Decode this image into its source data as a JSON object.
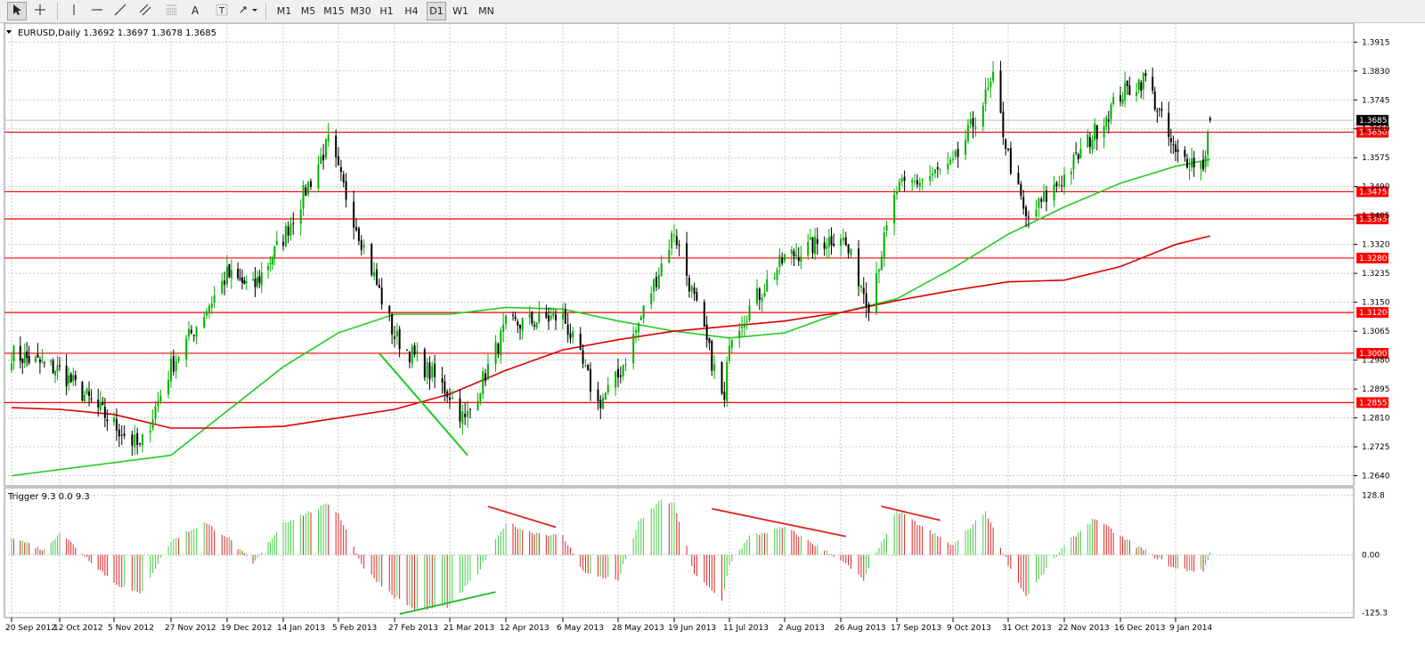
{
  "toolbar": {
    "tools": [
      {
        "name": "cursor-tool-button",
        "icon": "cursor-icon"
      },
      {
        "name": "crosshair-tool-button",
        "icon": "crosshair-icon"
      },
      {
        "name": "vertical-line-button",
        "icon": "vertical-line-icon"
      },
      {
        "name": "horizontal-line-button",
        "icon": "horizontal-line-icon"
      },
      {
        "name": "trendline-button",
        "icon": "trendline-icon"
      },
      {
        "name": "equidistant-channel-button",
        "icon": "channel-icon"
      },
      {
        "name": "fibonacci-button",
        "icon": "fibonacci-icon"
      },
      {
        "name": "text-button",
        "icon": "text-icon",
        "label": "A"
      },
      {
        "name": "text-label-button",
        "icon": "text-label-icon",
        "label": "T"
      },
      {
        "name": "arrows-button",
        "icon": "arrows-dropdown-icon"
      }
    ],
    "timeframes": [
      "M1",
      "M5",
      "M15",
      "M30",
      "H1",
      "H4",
      "D1",
      "W1",
      "MN"
    ],
    "active_timeframe": "D1"
  },
  "main_panel": {
    "title": "EURUSD,Daily  1.3692 1.3697 1.3678 1.3685",
    "current_price_label": "1.3685"
  },
  "indicator_panel": {
    "title": "Trigger 9.3 0.0 9.3"
  },
  "colors": {
    "bull_candle": "#00b000",
    "bear_candle": "#000000",
    "level_line": "#ff0000",
    "ma_green": "#22cc22",
    "ma_red": "#dd0000",
    "hist_up": "#44cc44",
    "hist_down": "#dd2222",
    "background": "#ffffff",
    "grid": "#c8c8c8"
  },
  "chart_data": [
    {
      "type": "candlestick",
      "symbol": "EURUSD",
      "timeframe": "Daily",
      "ylim": [
        1.261,
        1.3955
      ],
      "y_ticks": [
        "1.3915",
        "1.3830",
        "1.3745",
        "1.3660",
        "1.3575",
        "1.3490",
        "1.3405",
        "1.3320",
        "1.3235",
        "1.3150",
        "1.3065",
        "1.2980",
        "1.2895",
        "1.2810",
        "1.2725",
        "1.2640"
      ],
      "x_ticks": [
        "20 Sep 2012",
        "12 Oct 2012",
        "5 Nov 2012",
        "27 Nov 2012",
        "19 Dec 2012",
        "14 Jan 2013",
        "5 Feb 2013",
        "27 Feb 2013",
        "21 Mar 2013",
        "12 Apr 2013",
        "6 May 2013",
        "28 May 2013",
        "19 Jun 2013",
        "11 Jul 2013",
        "2 Aug 2013",
        "26 Aug 2013",
        "17 Sep 2013",
        "9 Oct 2013",
        "31 Oct 2013",
        "22 Nov 2013",
        "16 Dec 2013",
        "9 Jan 2014"
      ],
      "levels": [
        {
          "value": 1.365,
          "label": "1.3650"
        },
        {
          "value": 1.3475,
          "label": "1.3475"
        },
        {
          "value": 1.3395,
          "label": "1.3395"
        },
        {
          "value": 1.328,
          "label": "1.3280"
        },
        {
          "value": 1.312,
          "label": "1.3120"
        },
        {
          "value": 1.3,
          "label": "1.3000"
        },
        {
          "value": 1.2855,
          "label": "1.2855"
        }
      ],
      "close_anchors": [
        {
          "date": "20 Sep 2012",
          "close": 1.3
        },
        {
          "date": "12 Oct 2012",
          "close": 1.295
        },
        {
          "date": "5 Nov 2012",
          "close": 1.279
        },
        {
          "date": "15 Nov 2012",
          "close": 1.272
        },
        {
          "date": "27 Nov 2012",
          "close": 1.296
        },
        {
          "date": "19 Dec 2012",
          "close": 1.323
        },
        {
          "date": "31 Dec 2012",
          "close": 1.319
        },
        {
          "date": "14 Jan 2013",
          "close": 1.334
        },
        {
          "date": "1 Feb 2013",
          "close": 1.362
        },
        {
          "date": "5 Feb 2013",
          "close": 1.353
        },
        {
          "date": "27 Feb 2013",
          "close": 1.305
        },
        {
          "date": "21 Mar 2013",
          "close": 1.288
        },
        {
          "date": "27 Mar 2013",
          "close": 1.28
        },
        {
          "date": "12 Apr 2013",
          "close": 1.308
        },
        {
          "date": "6 May 2013",
          "close": 1.311
        },
        {
          "date": "20 May 2013",
          "close": 1.285
        },
        {
          "date": "28 May 2013",
          "close": 1.293
        },
        {
          "date": "19 Jun 2013",
          "close": 1.336
        },
        {
          "date": "9 Jul 2013",
          "close": 1.285
        },
        {
          "date": "11 Jul 2013",
          "close": 1.305
        },
        {
          "date": "2 Aug 2013",
          "close": 1.328
        },
        {
          "date": "26 Aug 2013",
          "close": 1.335
        },
        {
          "date": "6 Sep 2013",
          "close": 1.315
        },
        {
          "date": "17 Sep 2013",
          "close": 1.348
        },
        {
          "date": "9 Oct 2013",
          "close": 1.355
        },
        {
          "date": "25 Oct 2013",
          "close": 1.38
        },
        {
          "date": "31 Oct 2013",
          "close": 1.358
        },
        {
          "date": "7 Nov 2013",
          "close": 1.339
        },
        {
          "date": "22 Nov 2013",
          "close": 1.352
        },
        {
          "date": "16 Dec 2013",
          "close": 1.376
        },
        {
          "date": "27 Dec 2013",
          "close": 1.381
        },
        {
          "date": "9 Jan 2014",
          "close": 1.358
        },
        {
          "date": "21 Jan 2014",
          "close": 1.3555
        },
        {
          "date": "24 Jan 2014",
          "close": 1.3685
        }
      ],
      "ohlc_last": {
        "open": 1.3692,
        "high": 1.3697,
        "low": 1.3678,
        "close": 1.3685
      },
      "series": [
        {
          "name": "",
          "color": "#22cc22",
          "points": [
            {
              "date": "20 Sep 2012",
              "value": 1.264
            },
            {
              "date": "27 Nov 2012",
              "value": 1.27
            },
            {
              "date": "14 Jan 2013",
              "value": 1.296
            },
            {
              "date": "5 Feb 2013",
              "value": 1.306
            },
            {
              "date": "27 Feb 2013",
              "value": 1.3115
            },
            {
              "date": "21 Mar 2013",
              "value": 1.3115
            },
            {
              "date": "12 Apr 2013",
              "value": 1.3135
            },
            {
              "date": "6 May 2013",
              "value": 1.313
            },
            {
              "date": "28 May 2013",
              "value": 1.3095
            },
            {
              "date": "19 Jun 2013",
              "value": 1.3065
            },
            {
              "date": "11 Jul 2013",
              "value": 1.3045
            },
            {
              "date": "2 Aug 2013",
              "value": 1.306
            },
            {
              "date": "26 Aug 2013",
              "value": 1.312
            },
            {
              "date": "17 Sep 2013",
              "value": 1.316
            },
            {
              "date": "9 Oct 2013",
              "value": 1.325
            },
            {
              "date": "31 Oct 2013",
              "value": 1.335
            },
            {
              "date": "22 Nov 2013",
              "value": 1.343
            },
            {
              "date": "16 Dec 2013",
              "value": 1.35
            },
            {
              "date": "9 Jan 2014",
              "value": 1.355
            },
            {
              "date": "24 Jan 2014",
              "value": 1.357
            }
          ]
        },
        {
          "name": "",
          "color": "#dd0000",
          "points": [
            {
              "date": "20 Sep 2012",
              "value": 1.284
            },
            {
              "date": "12 Oct 2012",
              "value": 1.2835
            },
            {
              "date": "5 Nov 2012",
              "value": 1.282
            },
            {
              "date": "27 Nov 2012",
              "value": 1.278
            },
            {
              "date": "19 Dec 2012",
              "value": 1.278
            },
            {
              "date": "14 Jan 2013",
              "value": 1.2785
            },
            {
              "date": "5 Feb 2013",
              "value": 1.281
            },
            {
              "date": "27 Feb 2013",
              "value": 1.2835
            },
            {
              "date": "21 Mar 2013",
              "value": 1.288
            },
            {
              "date": "12 Apr 2013",
              "value": 1.295
            },
            {
              "date": "6 May 2013",
              "value": 1.301
            },
            {
              "date": "28 May 2013",
              "value": 1.304
            },
            {
              "date": "19 Jun 2013",
              "value": 1.3065
            },
            {
              "date": "11 Jul 2013",
              "value": 1.308
            },
            {
              "date": "2 Aug 2013",
              "value": 1.3095
            },
            {
              "date": "26 Aug 2013",
              "value": 1.312
            },
            {
              "date": "17 Sep 2013",
              "value": 1.3155
            },
            {
              "date": "9 Oct 2013",
              "value": 1.3185
            },
            {
              "date": "31 Oct 2013",
              "value": 1.321
            },
            {
              "date": "22 Nov 2013",
              "value": 1.3215
            },
            {
              "date": "16 Dec 2013",
              "value": 1.3255
            },
            {
              "date": "9 Jan 2014",
              "value": 1.332
            },
            {
              "date": "24 Jan 2014",
              "value": 1.3345
            }
          ]
        }
      ],
      "trendlines": [
        {
          "color": "#22cc22",
          "from": {
            "date": "21 Feb 2013",
            "value": 1.3
          },
          "to": {
            "date": "28 Mar 2013",
            "value": 1.27
          }
        }
      ]
    },
    {
      "type": "histogram",
      "name": "Trigger",
      "ylim": [
        -128,
        134
      ],
      "y_ticks": [
        "128.8",
        "0.00",
        "-125.3"
      ],
      "x_ticks": [
        "20 Sep 2012",
        "12 Oct 2012",
        "5 Nov 2012",
        "27 Nov 2012",
        "19 Dec 2012",
        "14 Jan 2013",
        "5 Feb 2013",
        "27 Feb 2013",
        "21 Mar 2013",
        "12 Apr 2013",
        "6 May 2013",
        "28 May 2013",
        "19 Jun 2013",
        "11 Jul 2013",
        "2 Aug 2013",
        "26 Aug 2013",
        "17 Sep 2013",
        "9 Oct 2013",
        "31 Oct 2013",
        "22 Nov 2013",
        "16 Dec 2013",
        "9 Jan 2014"
      ],
      "value_anchors": [
        {
          "date": "20 Sep 2012",
          "value": 40
        },
        {
          "date": "5 Oct 2012",
          "value": 10
        },
        {
          "date": "12 Oct 2012",
          "value": 50
        },
        {
          "date": "25 Oct 2012",
          "value": -10
        },
        {
          "date": "5 Nov 2012",
          "value": -60
        },
        {
          "date": "15 Nov 2012",
          "value": -85
        },
        {
          "date": "27 Nov 2012",
          "value": 30
        },
        {
          "date": "10 Dec 2012",
          "value": 70
        },
        {
          "date": "19 Dec 2012",
          "value": 40
        },
        {
          "date": "31 Dec 2012",
          "value": -20
        },
        {
          "date": "14 Jan 2013",
          "value": 70
        },
        {
          "date": "1 Feb 2013",
          "value": 110
        },
        {
          "date": "5 Feb 2013",
          "value": 90
        },
        {
          "date": "15 Feb 2013",
          "value": -30
        },
        {
          "date": "27 Feb 2013",
          "value": -90
        },
        {
          "date": "8 Mar 2013",
          "value": -120
        },
        {
          "date": "21 Mar 2013",
          "value": -110
        },
        {
          "date": "1 Apr 2013",
          "value": -40
        },
        {
          "date": "12 Apr 2013",
          "value": 70
        },
        {
          "date": "22 Apr 2013",
          "value": 50
        },
        {
          "date": "6 May 2013",
          "value": 40
        },
        {
          "date": "15 May 2013",
          "value": -40
        },
        {
          "date": "28 May 2013",
          "value": -55
        },
        {
          "date": "5 Jun 2013",
          "value": 70
        },
        {
          "date": "14 Jun 2013",
          "value": 120
        },
        {
          "date": "19 Jun 2013",
          "value": 110
        },
        {
          "date": "27 Jun 2013",
          "value": -40
        },
        {
          "date": "8 Jul 2013",
          "value": -100
        },
        {
          "date": "11 Jul 2013",
          "value": -20
        },
        {
          "date": "19 Jul 2013",
          "value": 40
        },
        {
          "date": "2 Aug 2013",
          "value": 60
        },
        {
          "date": "26 Aug 2013",
          "value": -10
        },
        {
          "date": "4 Sep 2013",
          "value": -55
        },
        {
          "date": "17 Sep 2013",
          "value": 95
        },
        {
          "date": "9 Oct 2013",
          "value": 20
        },
        {
          "date": "22 Oct 2013",
          "value": 95
        },
        {
          "date": "31 Oct 2013",
          "value": -20
        },
        {
          "date": "7 Nov 2013",
          "value": -90
        },
        {
          "date": "22 Nov 2013",
          "value": 20
        },
        {
          "date": "5 Dec 2013",
          "value": 80
        },
        {
          "date": "16 Dec 2013",
          "value": 40
        },
        {
          "date": "9 Jan 2014",
          "value": -30
        },
        {
          "date": "21 Jan 2014",
          "value": -35
        },
        {
          "date": "24 Jan 2014",
          "value": 5
        }
      ],
      "annotations": [
        {
          "color": "#dd2222",
          "from": {
            "date": "5 Apr 2013",
            "value": 105
          },
          "to": {
            "date": "3 May 2013",
            "value": 60
          }
        },
        {
          "color": "#dd2222",
          "from": {
            "date": "4 Jul 2013",
            "value": 100
          },
          "to": {
            "date": "28 Aug 2013",
            "value": 40
          }
        },
        {
          "color": "#dd2222",
          "from": {
            "date": "11 Sep 2013",
            "value": 105
          },
          "to": {
            "date": "4 Oct 2013",
            "value": 75
          }
        },
        {
          "color": "#22bb22",
          "from": {
            "date": "1 Mar 2013",
            "value": -128
          },
          "to": {
            "date": "8 Apr 2013",
            "value": -80
          }
        }
      ]
    }
  ]
}
